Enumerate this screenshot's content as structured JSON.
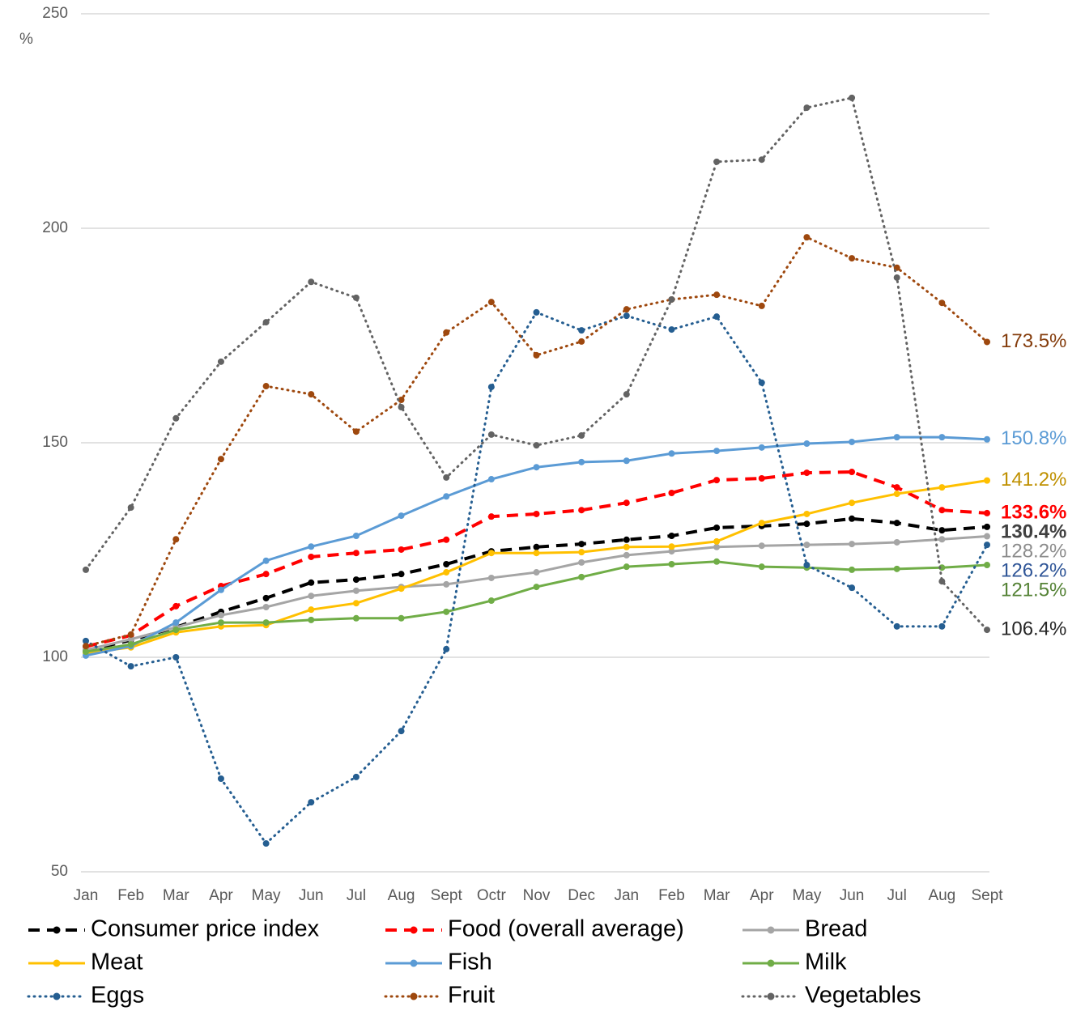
{
  "chart_data": {
    "type": "line",
    "y_label": "%",
    "categories": [
      "Jan",
      "Feb",
      "Mar",
      "Apr",
      "May",
      "Jun",
      "Jul",
      "Aug",
      "Sept",
      "Octr",
      "Nov",
      "Dec",
      "Jan",
      "Feb",
      "Mar",
      "Apr",
      "May",
      "Jun",
      "Jul",
      "Aug",
      "Sept"
    ],
    "ylim": [
      50,
      250
    ],
    "yticks": [
      50,
      100,
      150,
      200,
      250
    ],
    "grid": true,
    "legend": "bottom",
    "series": [
      {
        "name": "Consumer price index",
        "color": "#000000",
        "style": "dashed",
        "label_color": "#404040",
        "label_bold": true,
        "values": [
          101.5,
          104,
          107,
          110.6,
          113.8,
          117.4,
          118.1,
          119.4,
          121.7,
          124.7,
          125.7,
          126.4,
          127.4,
          128.3,
          130.2,
          130.6,
          131.1,
          132.3,
          131.3,
          129.6,
          130.4
        ],
        "value_labels": [
          null,
          null,
          null,
          null,
          null,
          null,
          null,
          null,
          null,
          null,
          null,
          null,
          null,
          null,
          null,
          null,
          null,
          null,
          null,
          null,
          "130.4%"
        ]
      },
      {
        "name": "Food (overall average)",
        "color": "#ff0000",
        "style": "dashed",
        "label_color": "#ff0000",
        "label_bold": true,
        "values": [
          102.5,
          105.1,
          111.9,
          116.6,
          119.4,
          123.4,
          124.3,
          125.1,
          127.4,
          132.8,
          133.4,
          134.3,
          136,
          138.3,
          141.3,
          141.7,
          143,
          143.2,
          139.6,
          134.3,
          133.6
        ],
        "value_labels": [
          null,
          null,
          null,
          null,
          null,
          null,
          null,
          null,
          null,
          null,
          null,
          null,
          null,
          null,
          null,
          null,
          null,
          null,
          null,
          null,
          "133.6%"
        ]
      },
      {
        "name": "Bread",
        "color": "#a5a5a5",
        "style": "solid",
        "label_color": "#8c8c8c",
        "values": [
          101.7,
          104.2,
          107,
          109.8,
          111.7,
          114.3,
          115.5,
          116.4,
          117,
          118.5,
          119.8,
          122.1,
          123.8,
          124.7,
          125.7,
          126,
          126.2,
          126.4,
          126.8,
          127.5,
          128.2
        ],
        "value_labels": [
          null,
          null,
          null,
          null,
          null,
          null,
          null,
          null,
          null,
          null,
          null,
          null,
          null,
          null,
          null,
          null,
          null,
          null,
          null,
          null,
          "128.2%"
        ]
      },
      {
        "name": "Meat",
        "color": "#ffc000",
        "style": "solid",
        "label_color": "#bf9000",
        "values": [
          101,
          102.3,
          105.8,
          107.2,
          107.5,
          111.1,
          112.6,
          116,
          119.8,
          124.3,
          124.3,
          124.5,
          125.7,
          125.8,
          127,
          131.3,
          133.4,
          136,
          138.1,
          139.6,
          141.2
        ],
        "value_labels": [
          null,
          null,
          null,
          null,
          null,
          null,
          null,
          null,
          null,
          null,
          null,
          null,
          null,
          null,
          null,
          null,
          null,
          null,
          null,
          null,
          "141.2%"
        ]
      },
      {
        "name": "Fish",
        "color": "#5b9bd5",
        "style": "solid",
        "label_color": "#5b9bd5",
        "values": [
          100.4,
          102.6,
          108.1,
          115.7,
          122.5,
          125.8,
          128.3,
          133,
          137.5,
          141.5,
          144.3,
          145.5,
          145.8,
          147.5,
          148.1,
          148.9,
          149.8,
          150.2,
          151.3,
          151.3,
          150.8
        ],
        "value_labels": [
          null,
          null,
          null,
          null,
          null,
          null,
          null,
          null,
          null,
          null,
          null,
          null,
          null,
          null,
          null,
          null,
          null,
          null,
          null,
          null,
          "150.8%"
        ]
      },
      {
        "name": "Milk",
        "color": "#70ad47",
        "style": "solid",
        "label_color": "#548235",
        "values": [
          101.3,
          103,
          106.4,
          108.1,
          108.1,
          108.7,
          109.1,
          109.1,
          110.6,
          113.2,
          116.4,
          118.7,
          121.1,
          121.7,
          122.3,
          121.1,
          120.9,
          120.4,
          120.6,
          120.9,
          121.5
        ],
        "value_labels": [
          null,
          null,
          null,
          null,
          null,
          null,
          null,
          null,
          null,
          null,
          null,
          null,
          null,
          null,
          null,
          null,
          null,
          null,
          null,
          null,
          "121.5%"
        ]
      },
      {
        "name": "Eggs",
        "color": "#255e91",
        "style": "dotted",
        "label_color": "#2f5597",
        "values": [
          103.8,
          97.9,
          100,
          71.7,
          56.6,
          66.2,
          72.1,
          82.8,
          101.9,
          163,
          180.4,
          176.2,
          179.6,
          176.4,
          179.4,
          164,
          121.5,
          116.2,
          107.2,
          107.2,
          126.2
        ],
        "value_labels": [
          null,
          null,
          null,
          null,
          null,
          null,
          null,
          null,
          null,
          null,
          null,
          null,
          null,
          null,
          null,
          null,
          null,
          null,
          null,
          null,
          "126.2%"
        ]
      },
      {
        "name": "Fruit",
        "color": "#9e480e",
        "style": "dotted",
        "label_color": "#843c0c",
        "values": [
          102.6,
          105.3,
          127.5,
          146.2,
          163.2,
          161.3,
          152.6,
          160,
          175.7,
          182.8,
          170.4,
          173.6,
          181.1,
          183.4,
          184.5,
          181.9,
          197.9,
          193,
          190.8,
          182.6,
          173.5
        ],
        "value_labels": [
          null,
          null,
          null,
          null,
          null,
          null,
          null,
          null,
          null,
          null,
          null,
          null,
          null,
          null,
          null,
          null,
          null,
          null,
          null,
          null,
          "173.5%"
        ]
      },
      {
        "name": "Vegetables",
        "color": "#636363",
        "style": "dotted",
        "label_color": "#262626",
        "values": [
          120.4,
          134.9,
          155.7,
          168.9,
          178.1,
          187.5,
          183.8,
          158.3,
          141.9,
          151.9,
          149.4,
          151.7,
          161.3,
          183.4,
          215.5,
          216,
          228.1,
          230.4,
          188.5,
          117.7,
          106.4
        ],
        "value_labels": [
          null,
          null,
          null,
          null,
          null,
          null,
          null,
          null,
          null,
          null,
          null,
          null,
          null,
          null,
          null,
          null,
          null,
          null,
          null,
          null,
          "106.4%"
        ]
      }
    ]
  }
}
